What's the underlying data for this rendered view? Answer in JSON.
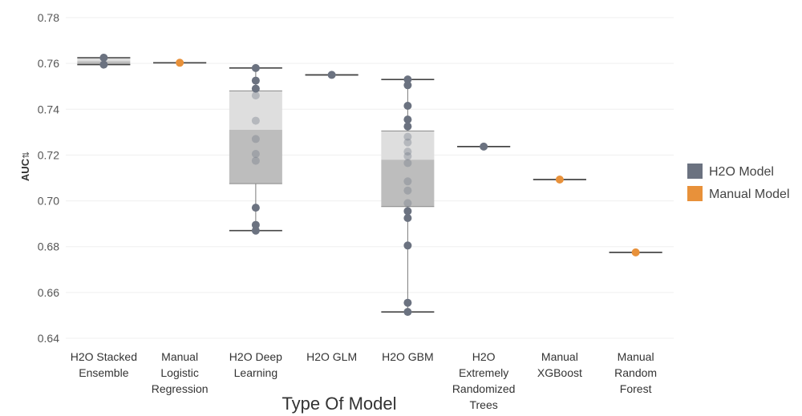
{
  "chart_data": {
    "type": "boxplot",
    "ylabel": "AUC",
    "ylabel_icon": "sort-icon",
    "xlabel": "Type Of Model",
    "ylim": [
      0.64,
      0.78
    ],
    "yticks": [
      "0.64",
      "0.66",
      "0.68",
      "0.70",
      "0.72",
      "0.74",
      "0.76",
      "0.78"
    ],
    "grid": true,
    "legend_position": "right",
    "legend": [
      {
        "name": "H2O Model",
        "color": "#6b7280"
      },
      {
        "name": "Manual Model",
        "color": "#e8913a"
      }
    ],
    "categories": [
      {
        "label": [
          "H2O Stacked",
          "Ensemble"
        ],
        "group": "H2O Model",
        "box": {
          "min": 0.7595,
          "q1": 0.7595,
          "median": 0.761,
          "q3": 0.7625,
          "max": 0.7625
        },
        "points": [
          0.7625,
          0.7595
        ]
      },
      {
        "label": [
          "Manual",
          "Logistic",
          "Regression"
        ],
        "group": "Manual Model",
        "box": {
          "min": 0.7603,
          "q1": 0.7603,
          "median": 0.7603,
          "q3": 0.7603,
          "max": 0.7603
        },
        "points": [
          0.7603
        ]
      },
      {
        "label": [
          "H2O Deep",
          "Learning"
        ],
        "group": "H2O Model",
        "box": {
          "min": 0.687,
          "q1": 0.7075,
          "median": 0.731,
          "q3": 0.748,
          "max": 0.758
        },
        "points": [
          0.758,
          0.7525,
          0.749,
          0.746,
          0.735,
          0.727,
          0.7205,
          0.7175,
          0.697,
          0.6895,
          0.687
        ]
      },
      {
        "label": [
          "H2O GLM"
        ],
        "group": "H2O Model",
        "box": {
          "min": 0.755,
          "q1": 0.755,
          "median": 0.755,
          "q3": 0.755,
          "max": 0.755
        },
        "points": [
          0.755
        ]
      },
      {
        "label": [
          "H2O GBM"
        ],
        "group": "H2O Model",
        "box": {
          "min": 0.6515,
          "q1": 0.6975,
          "median": 0.718,
          "q3": 0.7305,
          "max": 0.753
        },
        "points": [
          0.753,
          0.7505,
          0.7415,
          0.7355,
          0.7325,
          0.728,
          0.7255,
          0.7215,
          0.7195,
          0.7165,
          0.7085,
          0.7045,
          0.699,
          0.6955,
          0.6925,
          0.6805,
          0.6555,
          0.6515
        ]
      },
      {
        "label": [
          "H2O",
          "Extremely",
          "Randomized",
          "Trees"
        ],
        "group": "H2O Model",
        "box": {
          "min": 0.7237,
          "q1": 0.7237,
          "median": 0.7237,
          "q3": 0.7237,
          "max": 0.7237
        },
        "points": [
          0.7237
        ]
      },
      {
        "label": [
          "Manual",
          "XGBoost"
        ],
        "group": "Manual Model",
        "box": {
          "min": 0.7093,
          "q1": 0.7093,
          "median": 0.7093,
          "q3": 0.7093,
          "max": 0.7093
        },
        "points": [
          0.7093
        ]
      },
      {
        "label": [
          "Manual",
          "Random",
          "Forest"
        ],
        "group": "Manual Model",
        "box": {
          "min": 0.6775,
          "q1": 0.6775,
          "median": 0.6775,
          "q3": 0.6775,
          "max": 0.6775
        },
        "points": [
          0.6775
        ]
      }
    ]
  }
}
